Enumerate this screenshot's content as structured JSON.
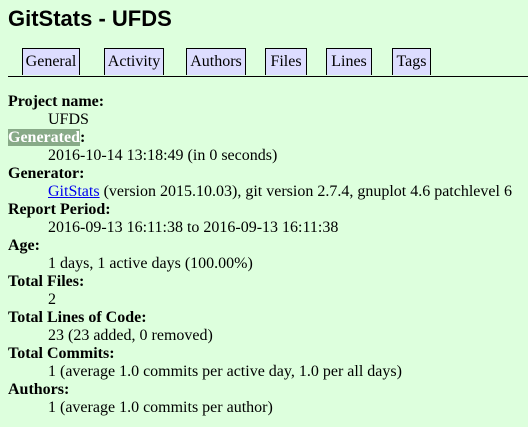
{
  "page_title": "GitStats - UFDS",
  "nav": [
    "General",
    "Activity",
    "Authors",
    "Files",
    "Lines",
    "Tags"
  ],
  "fields": {
    "project_name_label": "Project name:",
    "project_name_value": "UFDS",
    "generated_label": "Generated",
    "generated_colon": ":",
    "generated_value": "2016-10-14 13:18:49 (in 0 seconds)",
    "generator_label": "Generator:",
    "generator_link": "GitStats",
    "generator_rest": " (version 2015.10.03), git version 2.7.4, gnuplot 4.6 patchlevel 6",
    "report_period_label": "Report Period:",
    "report_period_value": "2016-09-13 16:11:38 to 2016-09-13 16:11:38",
    "age_label": "Age:",
    "age_value": "1 days, 1 active days (100.00%)",
    "total_files_label": "Total Files:",
    "total_files_value": "2",
    "total_loc_label": "Total Lines of Code:",
    "total_loc_value": "23 (23 added, 0 removed)",
    "total_commits_label": "Total Commits:",
    "total_commits_value": "1 (average 1.0 commits per active day, 1.0 per all days)",
    "authors_label": "Authors:",
    "authors_value": "1 (average 1.0 commits per author)"
  },
  "colors": {
    "page_background": "#ddffdd",
    "tab_background": "#ddddff",
    "selection_highlight": "#88aa88",
    "link": "#0000ee"
  }
}
